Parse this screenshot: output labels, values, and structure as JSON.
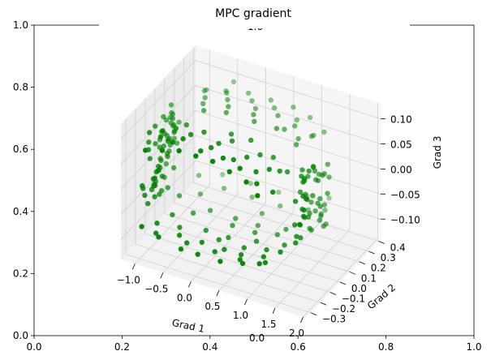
{
  "chart_data": {
    "type": "scatter",
    "projection": "3d",
    "title": "MPC gradient",
    "xlabel": "Grad 1",
    "ylabel": "Grad 2",
    "zlabel": "Grad 3",
    "xlim": [
      -1.25,
      2.05
    ],
    "ylim": [
      -0.35,
      0.42
    ],
    "zlim": [
      -0.14,
      0.13
    ],
    "xticks": [
      "−1.0",
      "−0.5",
      "0.0",
      "0.5",
      "1.0",
      "1.5",
      "2.0"
    ],
    "yticks": [
      "−0.3",
      "−0.2",
      "−0.1",
      "0.0",
      "0.1",
      "0.2",
      "0.3",
      "0.4"
    ],
    "zticks": [
      "−0.10",
      "−0.05",
      "0.00",
      "0.05",
      "0.10"
    ],
    "outer_axes": {
      "xticks": [
        "0.0",
        "0.2",
        "0.4",
        "0.6",
        "0.8",
        "1.0"
      ],
      "yticks": [
        "0.0",
        "0.2",
        "0.4",
        "0.6",
        "0.8",
        "1.0"
      ],
      "stray_labels": [
        "1.0",
        "0.0",
        "0.0",
        "1.0"
      ]
    },
    "color": "#008000",
    "grid": true,
    "series": [
      {
        "x": [
          -1.25,
          -1.24,
          -1.24,
          -1.22,
          -1.22,
          -1.21,
          -1.2,
          -1.19,
          -1.19,
          -1.18,
          -1.17,
          -1.16,
          -1.15,
          -1.14,
          -1.13,
          -1.12,
          -1.11,
          -1.1,
          -1.09,
          -1.08,
          -1.07,
          -1.05,
          -1.03,
          -1.0,
          -0.97,
          -1.19,
          -1.17,
          -1.13,
          -1.06,
          -1.2,
          -1.15,
          -1.18,
          -1.1,
          -1.22,
          -1.13,
          -1.2,
          -1.16,
          -1.08,
          -1.2,
          -1.14,
          -1.23,
          -1.12,
          -1.1,
          -1.2,
          -1.18,
          -1.05,
          -1.15,
          -1.18,
          -1.12,
          -1.22,
          -1.02,
          -1.14,
          -1.07,
          -1.18,
          -1.1,
          -1.2,
          -1.15,
          -1.12,
          -1.18,
          -1.08,
          1.35,
          1.38,
          1.4,
          1.42,
          1.44,
          1.45,
          1.46,
          1.47,
          1.48,
          1.5,
          1.52,
          1.53,
          1.54,
          1.55,
          1.56,
          1.57,
          1.58,
          1.6,
          1.62,
          1.64,
          1.38,
          1.45,
          1.5,
          1.55,
          1.6,
          1.42,
          1.52,
          1.58,
          1.47,
          1.56,
          1.44,
          1.5,
          1.6,
          1.4,
          1.53,
          1.46,
          1.55,
          1.62,
          1.48,
          1.57,
          1.43,
          1.51,
          1.59,
          1.45,
          1.54,
          1.49,
          1.61,
          1.41,
          1.56,
          1.52,
          -0.9,
          -0.6,
          -0.3,
          0.0,
          0.3,
          0.6,
          0.9,
          1.1,
          -0.8,
          -0.4,
          0.1,
          0.5,
          0.9,
          1.2,
          -0.7,
          -0.2,
          0.3,
          0.8,
          1.15,
          -0.5,
          0.0,
          0.4,
          0.7,
          1.0,
          -0.85,
          -0.35,
          0.15,
          0.65,
          1.05,
          -0.6,
          0.2,
          0.55,
          0.95,
          1.2,
          -0.85,
          -0.5,
          -0.1,
          0.3,
          0.7,
          1.0,
          1.25,
          -0.7,
          -0.3,
          0.2,
          0.6,
          0.9,
          1.2,
          -0.55,
          -0.15,
          0.35,
          0.75,
          1.1,
          -0.8,
          -0.4,
          0.05,
          0.45,
          0.85,
          1.15,
          -0.65,
          -0.2,
          0.25,
          0.8,
          1.05,
          -0.45,
          -1.0,
          -0.7,
          -0.3,
          0.0,
          0.4,
          0.8,
          1.1,
          -0.9,
          -0.5,
          -0.1,
          0.3,
          0.6,
          1.0,
          1.3,
          -0.8,
          -0.2,
          0.2,
          0.7,
          1.2,
          -0.6,
          0.1,
          0.5,
          0.9,
          -0.95,
          -0.4,
          0.05,
          0.45,
          0.95,
          -0.75,
          0.35,
          -0.95,
          -0.5,
          0.0,
          0.5,
          1.0,
          1.3,
          -0.7,
          -0.2,
          0.3,
          0.8,
          1.2,
          -0.85,
          -0.3,
          0.2,
          0.65,
          1.1,
          -0.6,
          0.1,
          0.55,
          0.95
        ],
        "y": [
          -0.05,
          0.0,
          0.05,
          -0.08,
          0.1,
          -0.02,
          0.07,
          -0.1,
          0.02,
          0.12,
          -0.06,
          0.04,
          0.09,
          -0.12,
          0.0,
          0.06,
          -0.04,
          0.11,
          -0.09,
          0.03,
          0.08,
          -0.07,
          0.01,
          0.05,
          -0.03,
          0.15,
          -0.15,
          0.13,
          -0.11,
          0.14,
          -0.13,
          0.16,
          0.1,
          -0.14,
          0.18,
          -0.16,
          0.12,
          -0.1,
          0.02,
          0.0,
          0.04,
          -0.06,
          0.08,
          -0.02,
          0.06,
          -0.04,
          0.1,
          0.03,
          -0.08,
          0.07,
          0.0,
          0.14,
          -0.12,
          0.11,
          -0.05,
          0.09,
          -0.09,
          0.05,
          -0.01,
          0.13,
          0.05,
          -0.02,
          0.08,
          0.0,
          0.1,
          -0.05,
          0.03,
          0.12,
          -0.08,
          0.06,
          -0.1,
          0.02,
          0.09,
          -0.03,
          0.14,
          -0.06,
          0.07,
          -0.12,
          0.04,
          0.11,
          0.0,
          0.15,
          -0.14,
          0.13,
          -0.11,
          0.09,
          -0.15,
          0.16,
          -0.13,
          0.01,
          0.06,
          -0.07,
          0.1,
          -0.04,
          0.12,
          0.03,
          -0.09,
          0.08,
          -0.02,
          0.05,
          0.11,
          -0.05,
          0.14,
          -0.1,
          0.07,
          0.0,
          -0.12,
          0.04,
          0.09,
          -0.06,
          -0.3,
          -0.3,
          -0.3,
          -0.3,
          -0.3,
          -0.3,
          -0.3,
          -0.3,
          -0.2,
          -0.2,
          -0.2,
          -0.2,
          -0.2,
          -0.2,
          -0.1,
          -0.1,
          -0.1,
          -0.1,
          -0.1,
          -0.25,
          -0.25,
          -0.25,
          -0.25,
          -0.25,
          -0.15,
          -0.15,
          -0.15,
          -0.15,
          -0.15,
          -0.05,
          -0.05,
          -0.05,
          -0.05,
          -0.05,
          0.3,
          0.3,
          0.3,
          0.3,
          0.3,
          0.3,
          0.3,
          0.2,
          0.2,
          0.2,
          0.2,
          0.2,
          0.2,
          0.1,
          0.1,
          0.1,
          0.1,
          0.1,
          0.25,
          0.25,
          0.25,
          0.25,
          0.25,
          0.25,
          0.15,
          0.15,
          0.15,
          0.15,
          0.15,
          0.35,
          -0.28,
          -0.28,
          -0.28,
          -0.28,
          -0.28,
          -0.28,
          -0.28,
          -0.18,
          -0.18,
          -0.18,
          -0.18,
          -0.18,
          -0.18,
          -0.18,
          -0.08,
          -0.08,
          -0.08,
          -0.08,
          -0.08,
          0.02,
          0.02,
          0.02,
          0.02,
          0.08,
          0.08,
          0.08,
          0.08,
          0.08,
          0.18,
          0.18,
          0.28,
          0.28,
          0.28,
          0.28,
          0.28,
          0.28,
          0.38,
          0.38,
          0.38,
          0.38,
          0.38,
          -0.22,
          -0.22,
          -0.22,
          -0.22,
          -0.22,
          -0.12,
          -0.12,
          -0.12,
          -0.12
        ],
        "z": [
          0.0,
          0.02,
          -0.02,
          0.04,
          -0.04,
          0.06,
          -0.06,
          0.03,
          -0.03,
          0.05,
          -0.05,
          0.01,
          -0.01,
          0.07,
          -0.07,
          0.02,
          -0.02,
          0.04,
          -0.04,
          0.0,
          0.06,
          -0.06,
          0.03,
          -0.03,
          0.01,
          0.05,
          -0.05,
          0.02,
          -0.02,
          0.07,
          -0.07,
          0.0,
          0.04,
          -0.04,
          0.03,
          -0.03,
          0.06,
          -0.06,
          0.01,
          -0.01,
          0.02,
          -0.02,
          0.05,
          -0.05,
          0.03,
          -0.03,
          0.0,
          0.04,
          -0.04,
          0.06,
          -0.06,
          0.02,
          -0.02,
          0.01,
          -0.01,
          0.05,
          -0.05,
          0.03,
          -0.03,
          0.0,
          0.0,
          0.02,
          -0.02,
          0.04,
          -0.04,
          0.06,
          -0.06,
          0.03,
          -0.03,
          0.05,
          -0.05,
          0.01,
          -0.01,
          0.07,
          -0.07,
          0.02,
          -0.02,
          0.04,
          -0.04,
          0.0,
          0.06,
          -0.06,
          0.03,
          -0.03,
          0.01,
          0.05,
          -0.05,
          0.02,
          -0.02,
          0.07,
          -0.07,
          0.0,
          0.04,
          -0.04,
          0.03,
          -0.03,
          0.06,
          -0.06,
          0.01,
          -0.01,
          0.02,
          -0.02,
          0.05,
          -0.05,
          0.03,
          -0.03,
          0.0,
          0.04,
          -0.04,
          0.06,
          0.08,
          0.09,
          0.1,
          0.1,
          0.1,
          0.09,
          0.08,
          0.06,
          0.09,
          0.1,
          0.1,
          0.09,
          0.08,
          0.05,
          0.09,
          0.1,
          0.1,
          0.09,
          0.07,
          0.1,
          0.1,
          0.1,
          0.09,
          0.07,
          0.09,
          0.1,
          0.1,
          0.09,
          0.08,
          0.09,
          0.1,
          0.1,
          0.08,
          0.06,
          0.08,
          0.09,
          0.1,
          0.1,
          0.1,
          0.09,
          0.07,
          0.09,
          0.1,
          0.1,
          0.1,
          0.09,
          0.08,
          0.09,
          0.1,
          0.1,
          0.1,
          0.08,
          0.09,
          0.1,
          0.1,
          0.1,
          0.09,
          0.07,
          0.09,
          0.1,
          0.1,
          0.09,
          0.08,
          0.1,
          -0.08,
          -0.09,
          -0.1,
          -0.1,
          -0.1,
          -0.09,
          -0.08,
          -0.09,
          -0.1,
          -0.1,
          -0.1,
          -0.1,
          -0.09,
          -0.07,
          -0.09,
          -0.1,
          -0.1,
          -0.09,
          -0.08,
          -0.1,
          -0.1,
          -0.1,
          -0.09,
          -0.09,
          -0.1,
          -0.1,
          -0.1,
          -0.09,
          -0.1,
          -0.1,
          -0.09,
          -0.1,
          -0.1,
          -0.1,
          -0.09,
          -0.08,
          -0.1,
          -0.1,
          -0.1,
          -0.09,
          -0.08,
          -0.1,
          -0.1,
          -0.1,
          -0.1,
          -0.09,
          -0.1,
          -0.1,
          -0.1,
          -0.09
        ]
      }
    ]
  }
}
